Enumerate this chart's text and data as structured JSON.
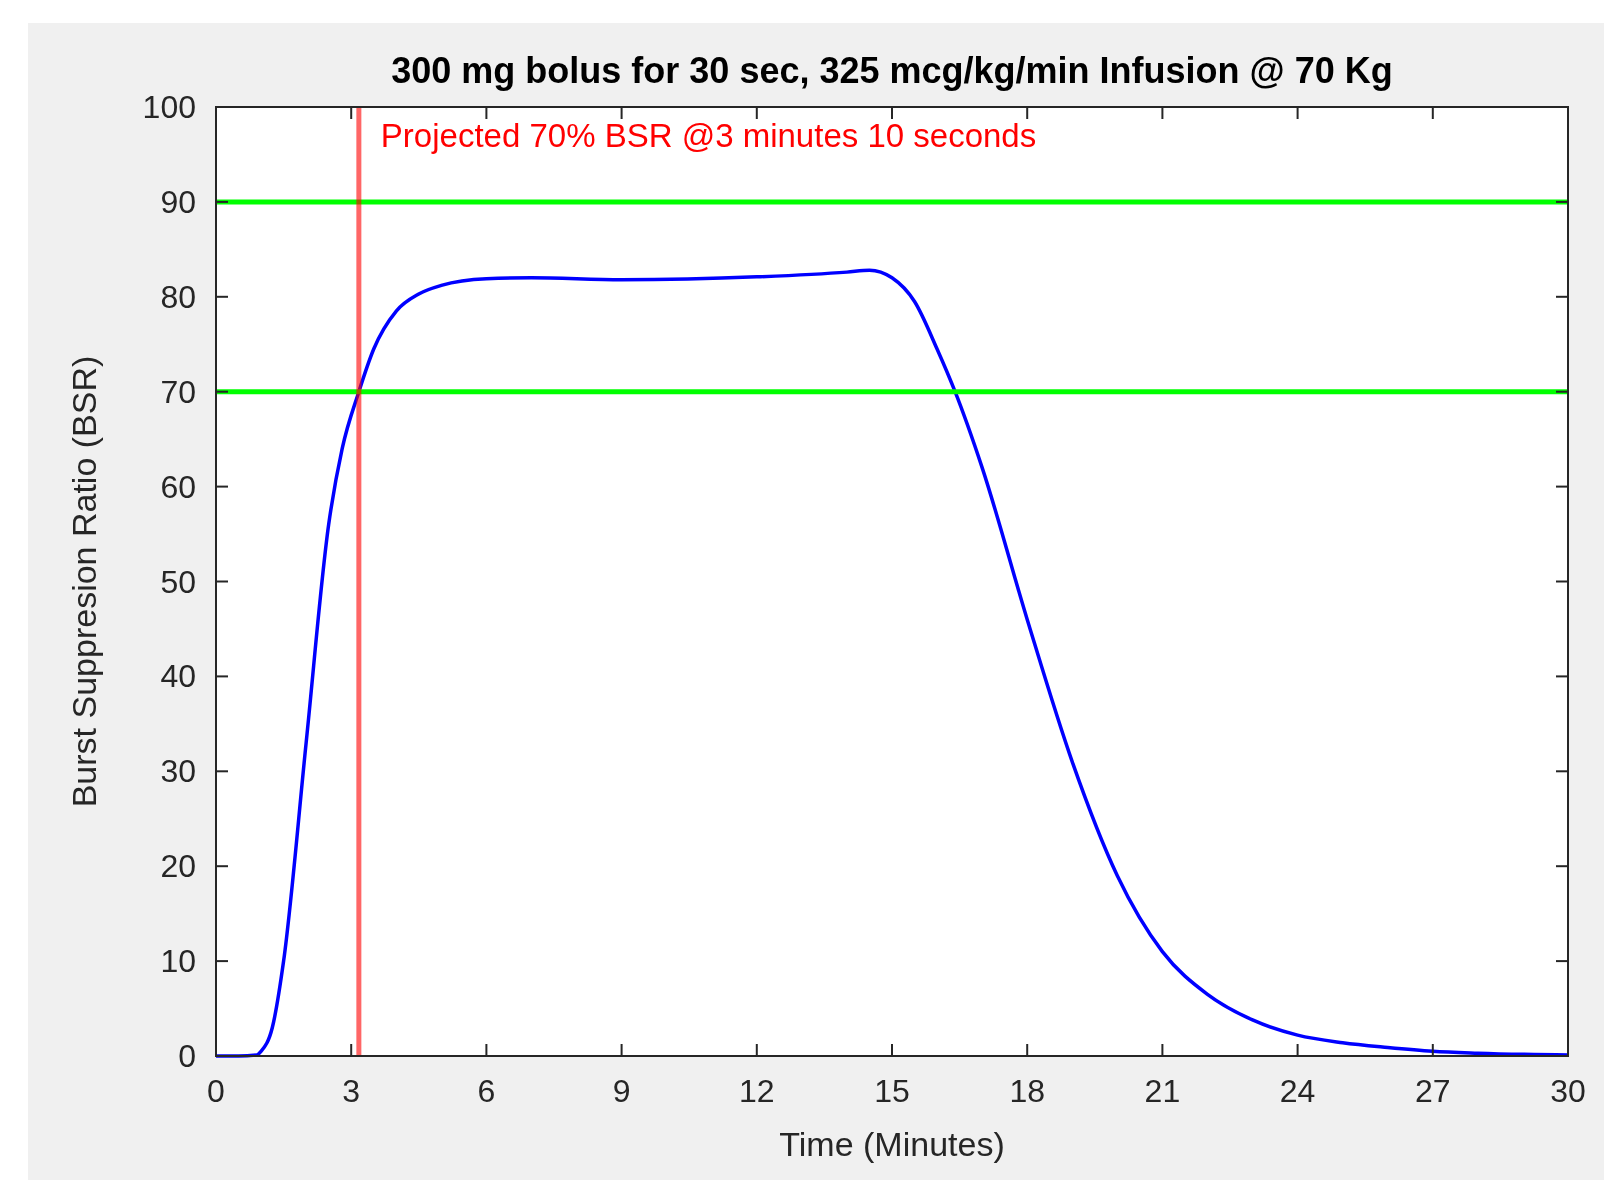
{
  "chart_data": {
    "type": "line",
    "title": "300 mg bolus for 30 sec, 325 mcg/kg/min Infusion @ 70 Kg",
    "xlabel": "Time (Minutes)",
    "ylabel": "Burst Suppresion Ratio (BSR)",
    "xlim": [
      0,
      30
    ],
    "xticks": [
      0,
      3,
      6,
      9,
      12,
      15,
      18,
      21,
      24,
      27,
      30
    ],
    "ylim": [
      0,
      100
    ],
    "yticks": [
      0,
      10,
      20,
      30,
      40,
      50,
      60,
      70,
      80,
      90,
      100
    ],
    "grid": false,
    "marker": "none",
    "line_style": "solid",
    "series": [
      {
        "color": "#0000ff",
        "x": [
          0,
          0.5,
          0.9,
          1.0,
          1.25,
          1.5,
          2.0,
          2.5,
          2.8,
          3.17,
          3.5,
          4,
          4.5,
          5,
          6,
          7,
          9,
          12,
          14,
          14.5,
          15,
          15.5,
          16,
          16.4,
          17,
          18,
          19,
          20,
          21,
          22,
          23,
          24,
          25,
          26,
          27,
          28,
          30
        ],
        "values": [
          0,
          0,
          0.1,
          0.5,
          3,
          10,
          33,
          56,
          64,
          70,
          74.5,
          78.5,
          80.3,
          81.2,
          81.9,
          82,
          81.8,
          82.1,
          82.6,
          82.8,
          82,
          79.5,
          74.5,
          70,
          62,
          46,
          31,
          19,
          11,
          6.5,
          3.8,
          2.2,
          1.4,
          0.9,
          0.5,
          0.3,
          0.1
        ]
      }
    ],
    "ref_lines": [
      {
        "axis": "y",
        "value": 90,
        "color": "#00ff00"
      },
      {
        "axis": "y",
        "value": 70,
        "color": "#00ff00"
      },
      {
        "axis": "x",
        "value": 3.17,
        "color": "#ff0000",
        "label": "Projected 70% BSR @3 minutes 10 seconds"
      }
    ]
  }
}
